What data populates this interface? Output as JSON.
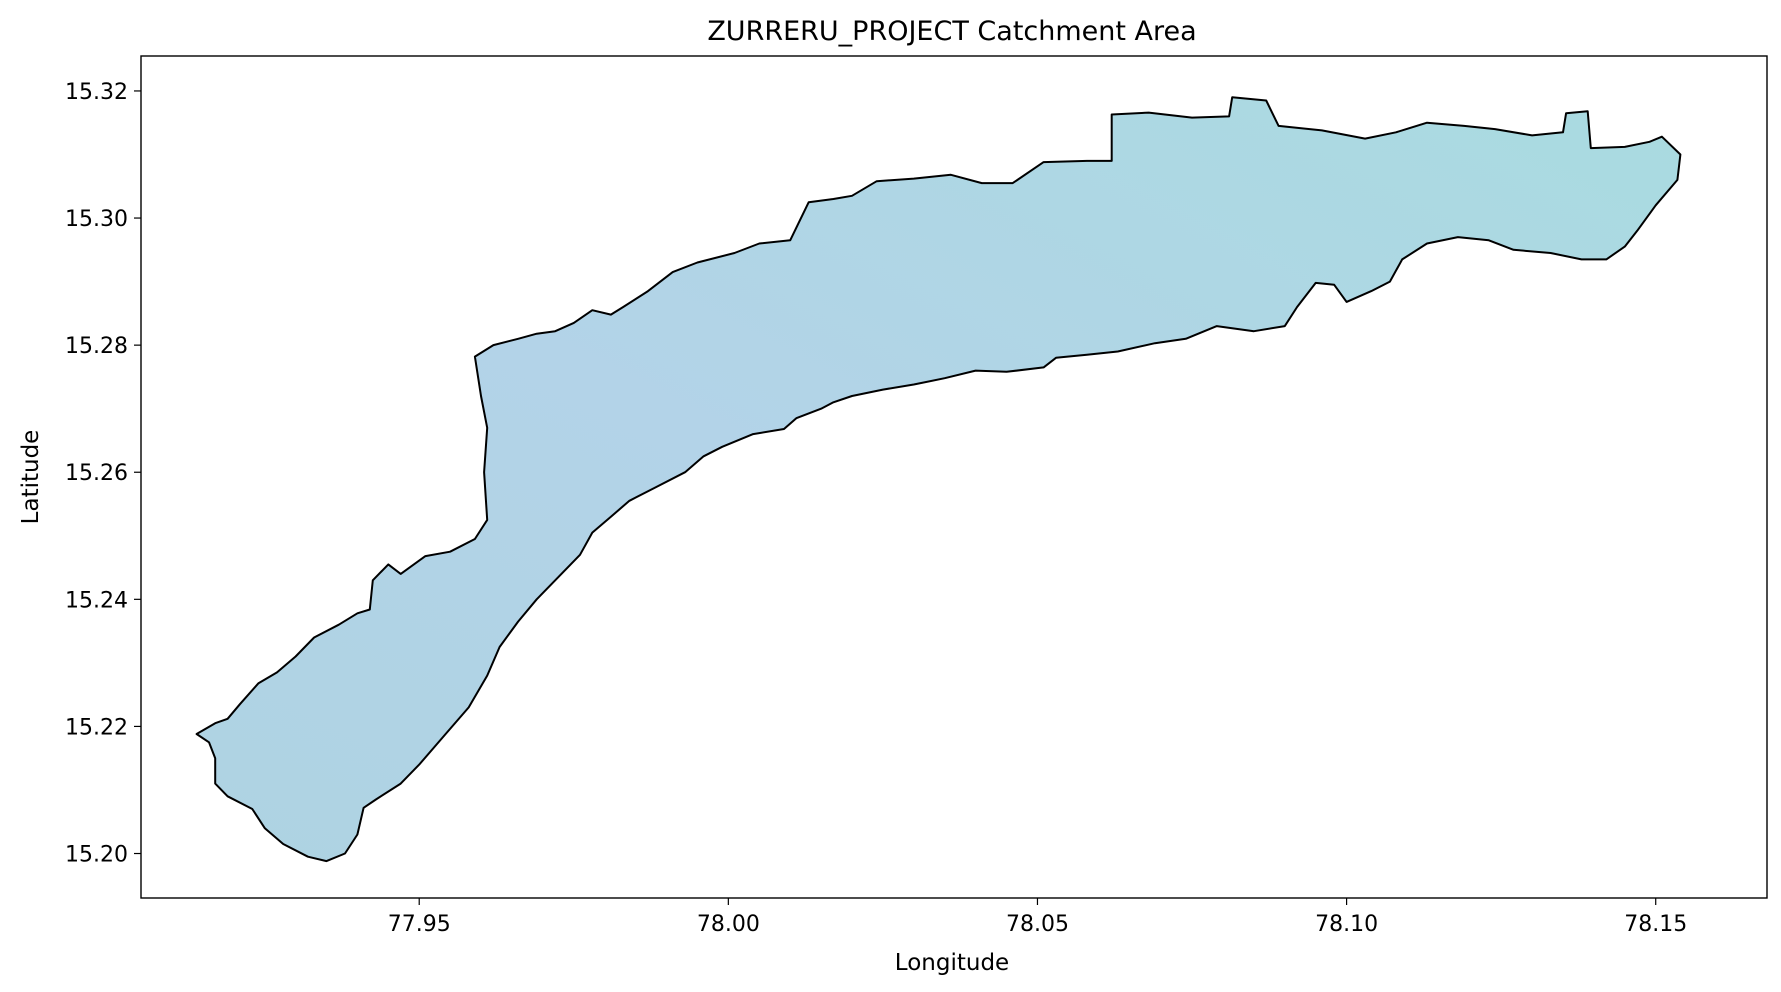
{
  "chart_data": {
    "type": "map",
    "title": "ZURRERU_PROJECT Catchment Area",
    "xlabel": "Longitude",
    "ylabel": "Latitude",
    "xlim": [
      77.905,
      78.168
    ],
    "ylim": [
      15.193,
      15.3255
    ],
    "x_ticks": [
      77.95,
      78.0,
      78.05,
      78.1,
      78.15
    ],
    "x_tick_labels": [
      "77.95",
      "78.00",
      "78.05",
      "78.10",
      "78.15"
    ],
    "y_ticks": [
      15.2,
      15.22,
      15.24,
      15.26,
      15.28,
      15.3,
      15.32
    ],
    "y_tick_labels": [
      "15.20",
      "15.22",
      "15.24",
      "15.26",
      "15.28",
      "15.30",
      "15.32"
    ],
    "grid": false,
    "fill_color": "#b3d3e8",
    "edge_color": "#000000",
    "boundary": [
      [
        77.914,
        15.2188
      ],
      [
        77.917,
        15.2205
      ],
      [
        77.919,
        15.2212
      ],
      [
        77.921,
        15.2235
      ],
      [
        77.924,
        15.2268
      ],
      [
        77.927,
        15.2285
      ],
      [
        77.93,
        15.231
      ],
      [
        77.933,
        15.234
      ],
      [
        77.937,
        15.236
      ],
      [
        77.94,
        15.2378
      ],
      [
        77.942,
        15.2384
      ],
      [
        77.9425,
        15.243
      ],
      [
        77.945,
        15.2455
      ],
      [
        77.947,
        15.244
      ],
      [
        77.951,
        15.2468
      ],
      [
        77.955,
        15.2475
      ],
      [
        77.959,
        15.2495
      ],
      [
        77.961,
        15.2525
      ],
      [
        77.9605,
        15.26
      ],
      [
        77.961,
        15.267
      ],
      [
        77.96,
        15.272
      ],
      [
        77.959,
        15.2782
      ],
      [
        77.962,
        15.28
      ],
      [
        77.966,
        15.281
      ],
      [
        77.969,
        15.2818
      ],
      [
        77.972,
        15.2822
      ],
      [
        77.975,
        15.2835
      ],
      [
        77.978,
        15.2855
      ],
      [
        77.981,
        15.2848
      ],
      [
        77.983,
        15.286
      ],
      [
        77.987,
        15.2885
      ],
      [
        77.991,
        15.2915
      ],
      [
        77.995,
        15.293
      ],
      [
        78.001,
        15.2945
      ],
      [
        78.005,
        15.296
      ],
      [
        78.01,
        15.2965
      ],
      [
        78.013,
        15.3025
      ],
      [
        78.017,
        15.303
      ],
      [
        78.02,
        15.3035
      ],
      [
        78.024,
        15.3058
      ],
      [
        78.03,
        15.3062
      ],
      [
        78.036,
        15.3068
      ],
      [
        78.041,
        15.3055
      ],
      [
        78.046,
        15.3055
      ],
      [
        78.051,
        15.3088
      ],
      [
        78.058,
        15.309
      ],
      [
        78.062,
        15.309
      ],
      [
        78.062,
        15.3163
      ],
      [
        78.068,
        15.3166
      ],
      [
        78.075,
        15.3158
      ],
      [
        78.081,
        15.316
      ],
      [
        78.0815,
        15.319
      ],
      [
        78.087,
        15.3185
      ],
      [
        78.089,
        15.3145
      ],
      [
        78.096,
        15.3138
      ],
      [
        78.103,
        15.3125
      ],
      [
        78.108,
        15.3135
      ],
      [
        78.113,
        15.315
      ],
      [
        78.119,
        15.3145
      ],
      [
        78.124,
        15.314
      ],
      [
        78.13,
        15.313
      ],
      [
        78.135,
        15.3135
      ],
      [
        78.1355,
        15.3165
      ],
      [
        78.139,
        15.3168
      ],
      [
        78.1395,
        15.311
      ],
      [
        78.145,
        15.3112
      ],
      [
        78.149,
        15.312
      ],
      [
        78.151,
        15.3128
      ],
      [
        78.154,
        15.31
      ],
      [
        78.1535,
        15.306
      ],
      [
        78.15,
        15.302
      ],
      [
        78.147,
        15.298
      ],
      [
        78.145,
        15.2955
      ],
      [
        78.142,
        15.2935
      ],
      [
        78.138,
        15.2935
      ],
      [
        78.133,
        15.2945
      ],
      [
        78.127,
        15.295
      ],
      [
        78.123,
        15.2965
      ],
      [
        78.118,
        15.297
      ],
      [
        78.113,
        15.296
      ],
      [
        78.109,
        15.2935
      ],
      [
        78.107,
        15.29
      ],
      [
        78.104,
        15.2885
      ],
      [
        78.1,
        15.2868
      ],
      [
        78.098,
        15.2895
      ],
      [
        78.095,
        15.2898
      ],
      [
        78.092,
        15.286
      ],
      [
        78.09,
        15.283
      ],
      [
        78.085,
        15.2822
      ],
      [
        78.079,
        15.283
      ],
      [
        78.074,
        15.281
      ],
      [
        78.069,
        15.2803
      ],
      [
        78.063,
        15.279
      ],
      [
        78.058,
        15.2785
      ],
      [
        78.053,
        15.278
      ],
      [
        78.051,
        15.2765
      ],
      [
        78.045,
        15.2758
      ],
      [
        78.04,
        15.276
      ],
      [
        78.035,
        15.2748
      ],
      [
        78.03,
        15.2738
      ],
      [
        78.025,
        15.273
      ],
      [
        78.02,
        15.272
      ],
      [
        78.017,
        15.271
      ],
      [
        78.015,
        15.27
      ],
      [
        78.011,
        15.2685
      ],
      [
        78.009,
        15.2668
      ],
      [
        78.004,
        15.266
      ],
      [
        77.999,
        15.264
      ],
      [
        77.996,
        15.2625
      ],
      [
        77.993,
        15.26
      ],
      [
        77.988,
        15.2575
      ],
      [
        77.984,
        15.2555
      ],
      [
        77.981,
        15.253
      ],
      [
        77.978,
        15.2505
      ],
      [
        77.976,
        15.247
      ],
      [
        77.973,
        15.244
      ],
      [
        77.969,
        15.24
      ],
      [
        77.966,
        15.2365
      ],
      [
        77.963,
        15.2325
      ],
      [
        77.961,
        15.228
      ],
      [
        77.958,
        15.223
      ],
      [
        77.954,
        15.2185
      ],
      [
        77.95,
        15.214
      ],
      [
        77.947,
        15.211
      ],
      [
        77.943,
        15.2085
      ],
      [
        77.941,
        15.2072
      ],
      [
        77.94,
        15.203
      ],
      [
        77.938,
        15.2
      ],
      [
        77.935,
        15.1988
      ],
      [
        77.932,
        15.1995
      ],
      [
        77.928,
        15.2015
      ],
      [
        77.925,
        15.204
      ],
      [
        77.923,
        15.207
      ],
      [
        77.919,
        15.209
      ],
      [
        77.917,
        15.211
      ],
      [
        77.917,
        15.215
      ],
      [
        77.916,
        15.2175
      ],
      [
        77.914,
        15.2188
      ]
    ]
  }
}
